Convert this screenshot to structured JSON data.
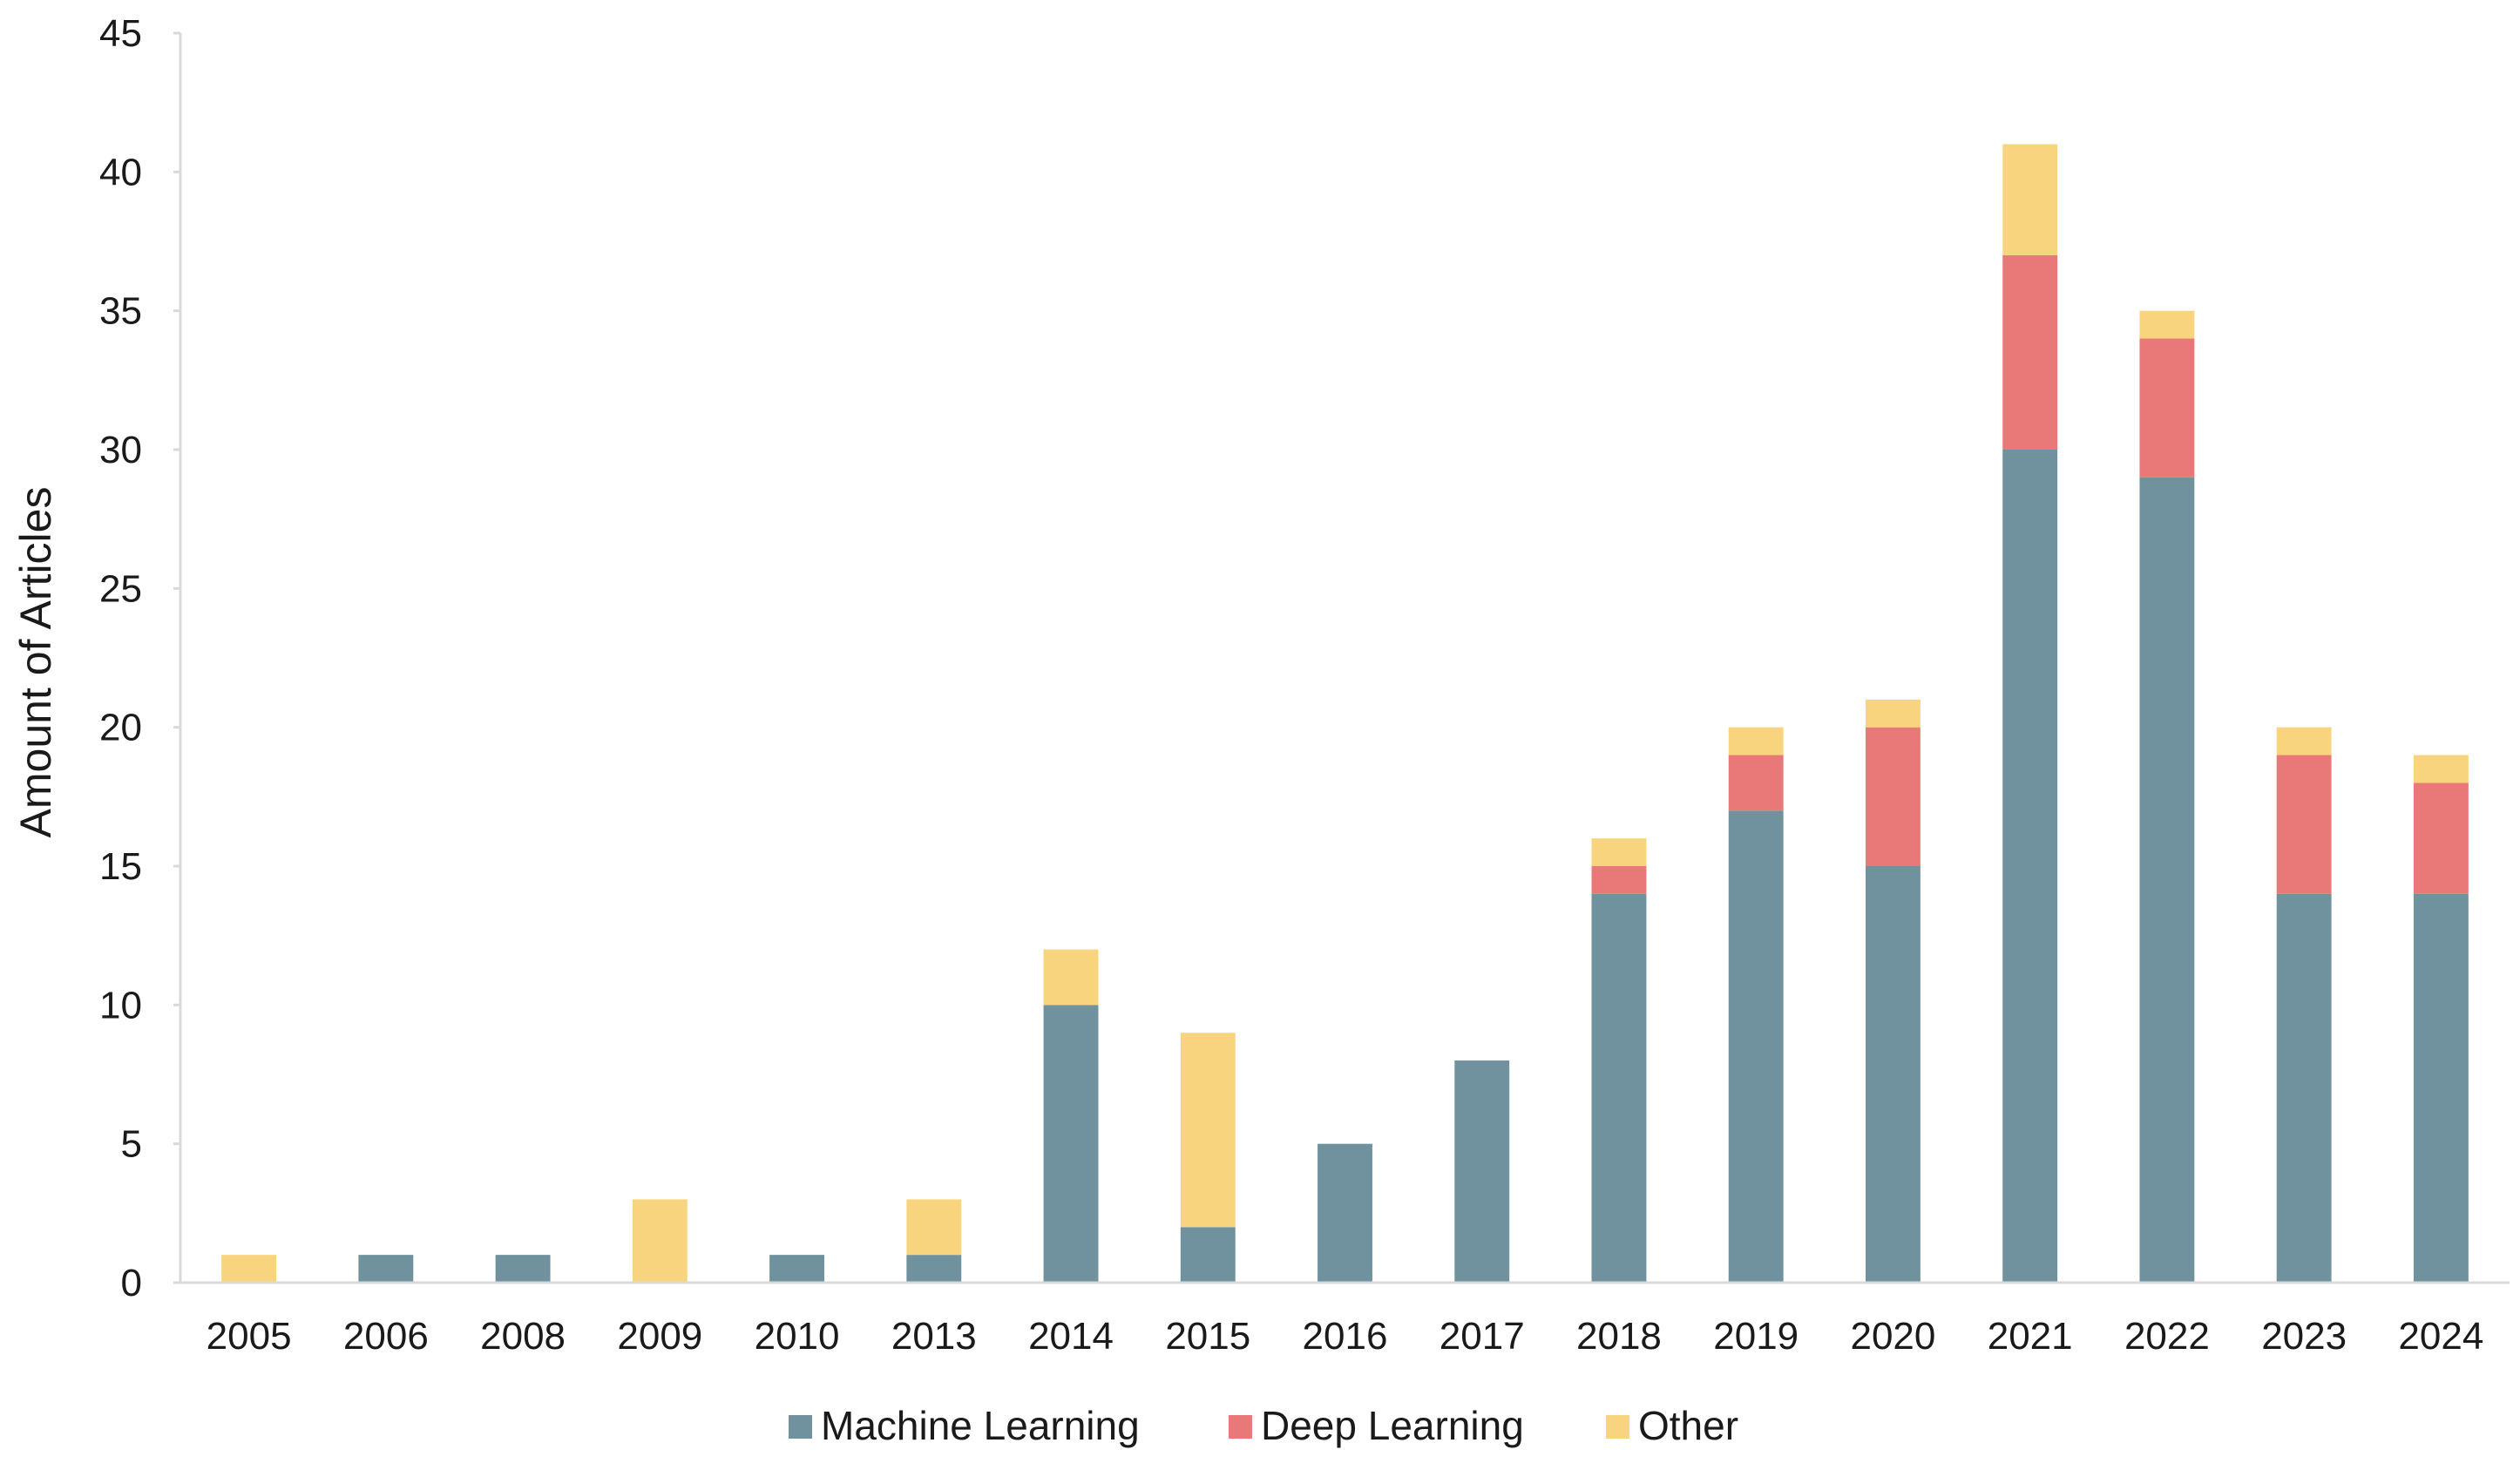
{
  "chart_data": {
    "type": "bar",
    "stacked": true,
    "title": "",
    "xlabel": "",
    "ylabel": "Amount of Articles",
    "ylim": [
      0,
      45
    ],
    "yticks": [
      0,
      5,
      10,
      15,
      20,
      25,
      30,
      35,
      40,
      45
    ],
    "grid": false,
    "legend_position": "bottom",
    "categories": [
      "2005",
      "2006",
      "2008",
      "2009",
      "2010",
      "2013",
      "2014",
      "2015",
      "2016",
      "2017",
      "2018",
      "2019",
      "2020",
      "2021",
      "2022",
      "2023",
      "2024"
    ],
    "series": [
      {
        "name": "Machine Learning",
        "color": "#6f929e",
        "values": [
          0,
          1,
          1,
          0,
          1,
          1,
          10,
          2,
          5,
          8,
          14,
          17,
          15,
          30,
          29,
          14,
          14
        ]
      },
      {
        "name": "Deep Learning",
        "color": "#e97979",
        "values": [
          0,
          0,
          0,
          0,
          0,
          0,
          0,
          0,
          0,
          0,
          1,
          2,
          5,
          7,
          5,
          5,
          4
        ]
      },
      {
        "name": "Other",
        "color": "#f9d47e",
        "values": [
          1,
          0,
          0,
          3,
          0,
          2,
          2,
          7,
          0,
          0,
          1,
          1,
          1,
          4,
          1,
          1,
          1
        ]
      }
    ]
  }
}
